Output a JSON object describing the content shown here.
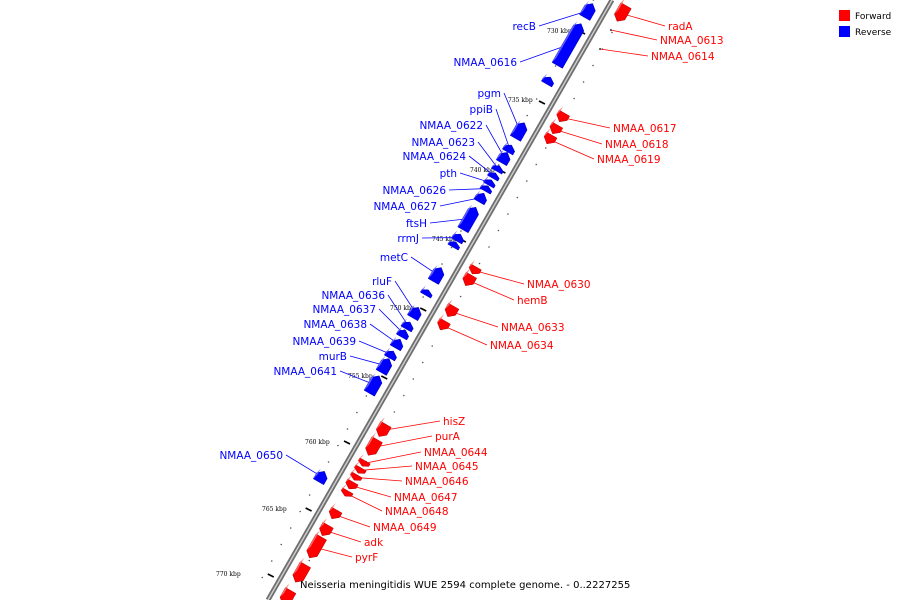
{
  "legend": {
    "forward": {
      "label": "Forward",
      "color": "#ff0000"
    },
    "reverse": {
      "label": "Reverse",
      "color": "#0000ff"
    }
  },
  "caption": "Neisseria meningitidis WUE 2594 complete genome. - 0..2227255",
  "ticks": [
    "730 kbp",
    "735 kbp",
    "740 kbp",
    "745 kbp",
    "750 kbp",
    "755 kbp",
    "760 kbp",
    "765 kbp",
    "770 kbp"
  ],
  "genes": [
    {
      "name": "radA",
      "strand": "forward"
    },
    {
      "name": "NMAA_0613",
      "strand": "forward"
    },
    {
      "name": "NMAA_0614",
      "strand": "forward"
    },
    {
      "name": "recB",
      "strand": "reverse"
    },
    {
      "name": "NMAA_0616",
      "strand": "reverse"
    },
    {
      "name": "NMAA_0617",
      "strand": "forward"
    },
    {
      "name": "NMAA_0618",
      "strand": "forward"
    },
    {
      "name": "NMAA_0619",
      "strand": "forward"
    },
    {
      "name": "pgm",
      "strand": "reverse"
    },
    {
      "name": "ppiB",
      "strand": "reverse"
    },
    {
      "name": "NMAA_0622",
      "strand": "reverse"
    },
    {
      "name": "NMAA_0623",
      "strand": "reverse"
    },
    {
      "name": "NMAA_0624",
      "strand": "reverse"
    },
    {
      "name": "pth",
      "strand": "reverse"
    },
    {
      "name": "NMAA_0626",
      "strand": "reverse"
    },
    {
      "name": "NMAA_0627",
      "strand": "reverse"
    },
    {
      "name": "ftsH",
      "strand": "reverse"
    },
    {
      "name": "rrmJ",
      "strand": "reverse"
    },
    {
      "name": "metC",
      "strand": "reverse"
    },
    {
      "name": "NMAA_0630",
      "strand": "forward"
    },
    {
      "name": "hemB",
      "strand": "forward"
    },
    {
      "name": "rluF",
      "strand": "reverse"
    },
    {
      "name": "NMAA_0636",
      "strand": "reverse"
    },
    {
      "name": "NMAA_0637",
      "strand": "reverse"
    },
    {
      "name": "NMAA_0638",
      "strand": "reverse"
    },
    {
      "name": "NMAA_0639",
      "strand": "reverse"
    },
    {
      "name": "murB",
      "strand": "reverse"
    },
    {
      "name": "NMAA_0641",
      "strand": "reverse"
    },
    {
      "name": "NMAA_0633",
      "strand": "forward"
    },
    {
      "name": "NMAA_0634",
      "strand": "forward"
    },
    {
      "name": "hisZ",
      "strand": "forward"
    },
    {
      "name": "purA",
      "strand": "forward"
    },
    {
      "name": "NMAA_0644",
      "strand": "forward"
    },
    {
      "name": "NMAA_0645",
      "strand": "forward"
    },
    {
      "name": "NMAA_0646",
      "strand": "forward"
    },
    {
      "name": "NMAA_0647",
      "strand": "forward"
    },
    {
      "name": "NMAA_0648",
      "strand": "forward"
    },
    {
      "name": "NMAA_0649",
      "strand": "forward"
    },
    {
      "name": "adk",
      "strand": "forward"
    },
    {
      "name": "pyrF",
      "strand": "forward"
    },
    {
      "name": "NMAA_0650",
      "strand": "reverse"
    }
  ]
}
